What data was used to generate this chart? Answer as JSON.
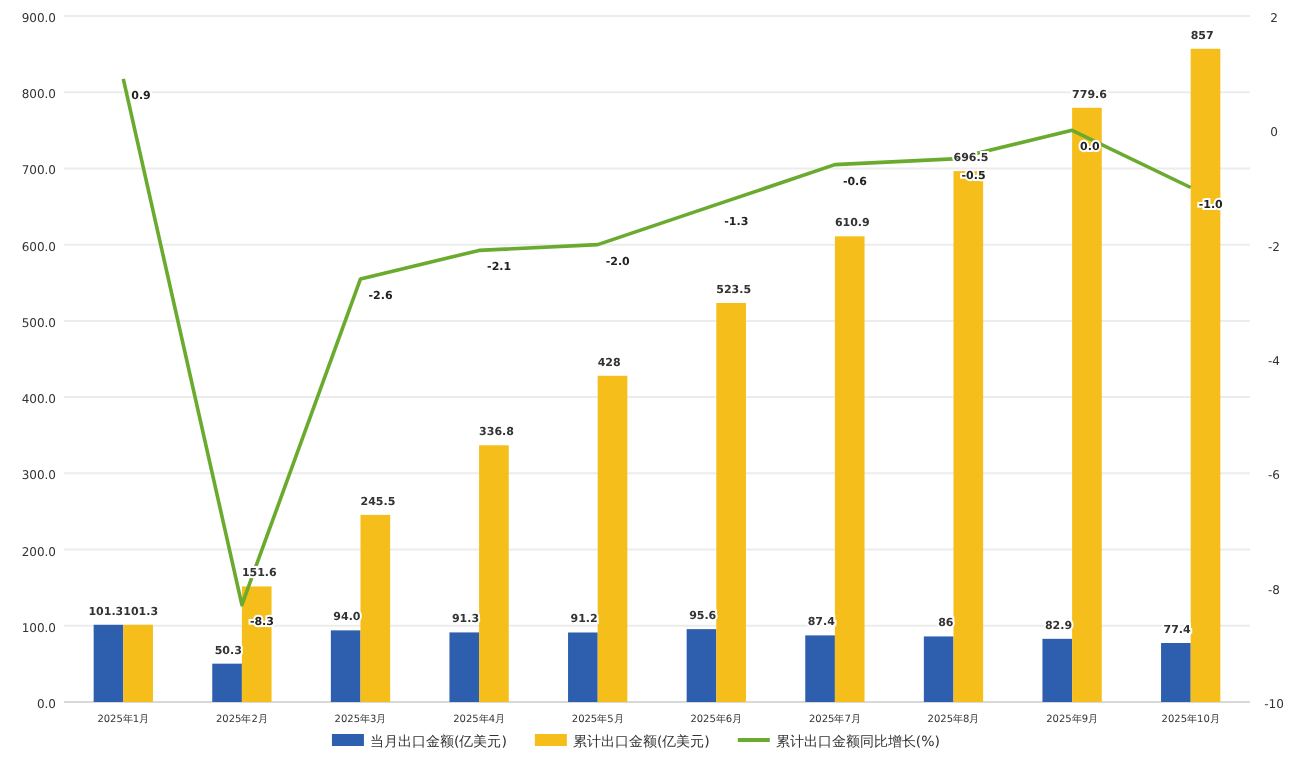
{
  "chart_data": {
    "type": "bar",
    "categories": [
      "2025年1月",
      "2025年2月",
      "2025年3月",
      "2025年4月",
      "2025年5月",
      "2025年6月",
      "2025年7月",
      "2025年8月",
      "2025年9月",
      "2025年10月"
    ],
    "series": [
      {
        "name": "当月出口金额(亿美元)",
        "color": "#2e5fae",
        "values": [
          101.3,
          50.3,
          94.0,
          91.3,
          91.2,
          95.6,
          87.4,
          86,
          82.9,
          77.4
        ],
        "value_labels": [
          "101.3",
          "50.3",
          "94.0",
          "91.3",
          "91.2",
          "95.6",
          "87.4",
          "86",
          "82.9",
          "77.4"
        ]
      },
      {
        "name": "累计出口金额(亿美元)",
        "color": "#f5be1b",
        "values": [
          101.3,
          151.6,
          245.5,
          336.8,
          428,
          523.5,
          610.9,
          696.5,
          779.6,
          857
        ],
        "value_labels": [
          "101.3",
          "151.6",
          "245.5",
          "336.8",
          "428",
          "523.5",
          "610.9",
          "696.5",
          "779.6",
          "857"
        ]
      },
      {
        "name": "累计出口金额同比增长(%)",
        "color": "#6aaa2e",
        "type": "line",
        "axis": "y2",
        "values": [
          0.9,
          -8.3,
          -2.6,
          -2.1,
          -2.0,
          -1.3,
          -0.6,
          -0.5,
          0.0,
          -1.0
        ],
        "value_labels": [
          "0.9",
          "-8.3",
          "-2.6",
          "-2.1",
          "-2.0",
          "-1.3",
          "-0.6",
          "-0.5",
          "0.0",
          "-1.0"
        ]
      }
    ],
    "ylim": [
      0,
      900
    ],
    "yticks": [
      {
        "value": 0,
        "label": "0.0"
      },
      {
        "value": 100,
        "label": "100.0"
      },
      {
        "value": 200,
        "label": "200.0"
      },
      {
        "value": 300,
        "label": "300.0"
      },
      {
        "value": 400,
        "label": "400.0"
      },
      {
        "value": 500,
        "label": "500.0"
      },
      {
        "value": 600,
        "label": "600.0"
      },
      {
        "value": 700,
        "label": "700.0"
      },
      {
        "value": 800,
        "label": "800.0"
      },
      {
        "value": 900,
        "label": "900.0"
      }
    ],
    "y2lim": [
      -10,
      2
    ],
    "y2ticks": [
      -10,
      -8,
      -6,
      -4,
      -2,
      0,
      2
    ],
    "grid": "y",
    "legend": "bottom",
    "marker": "none"
  }
}
